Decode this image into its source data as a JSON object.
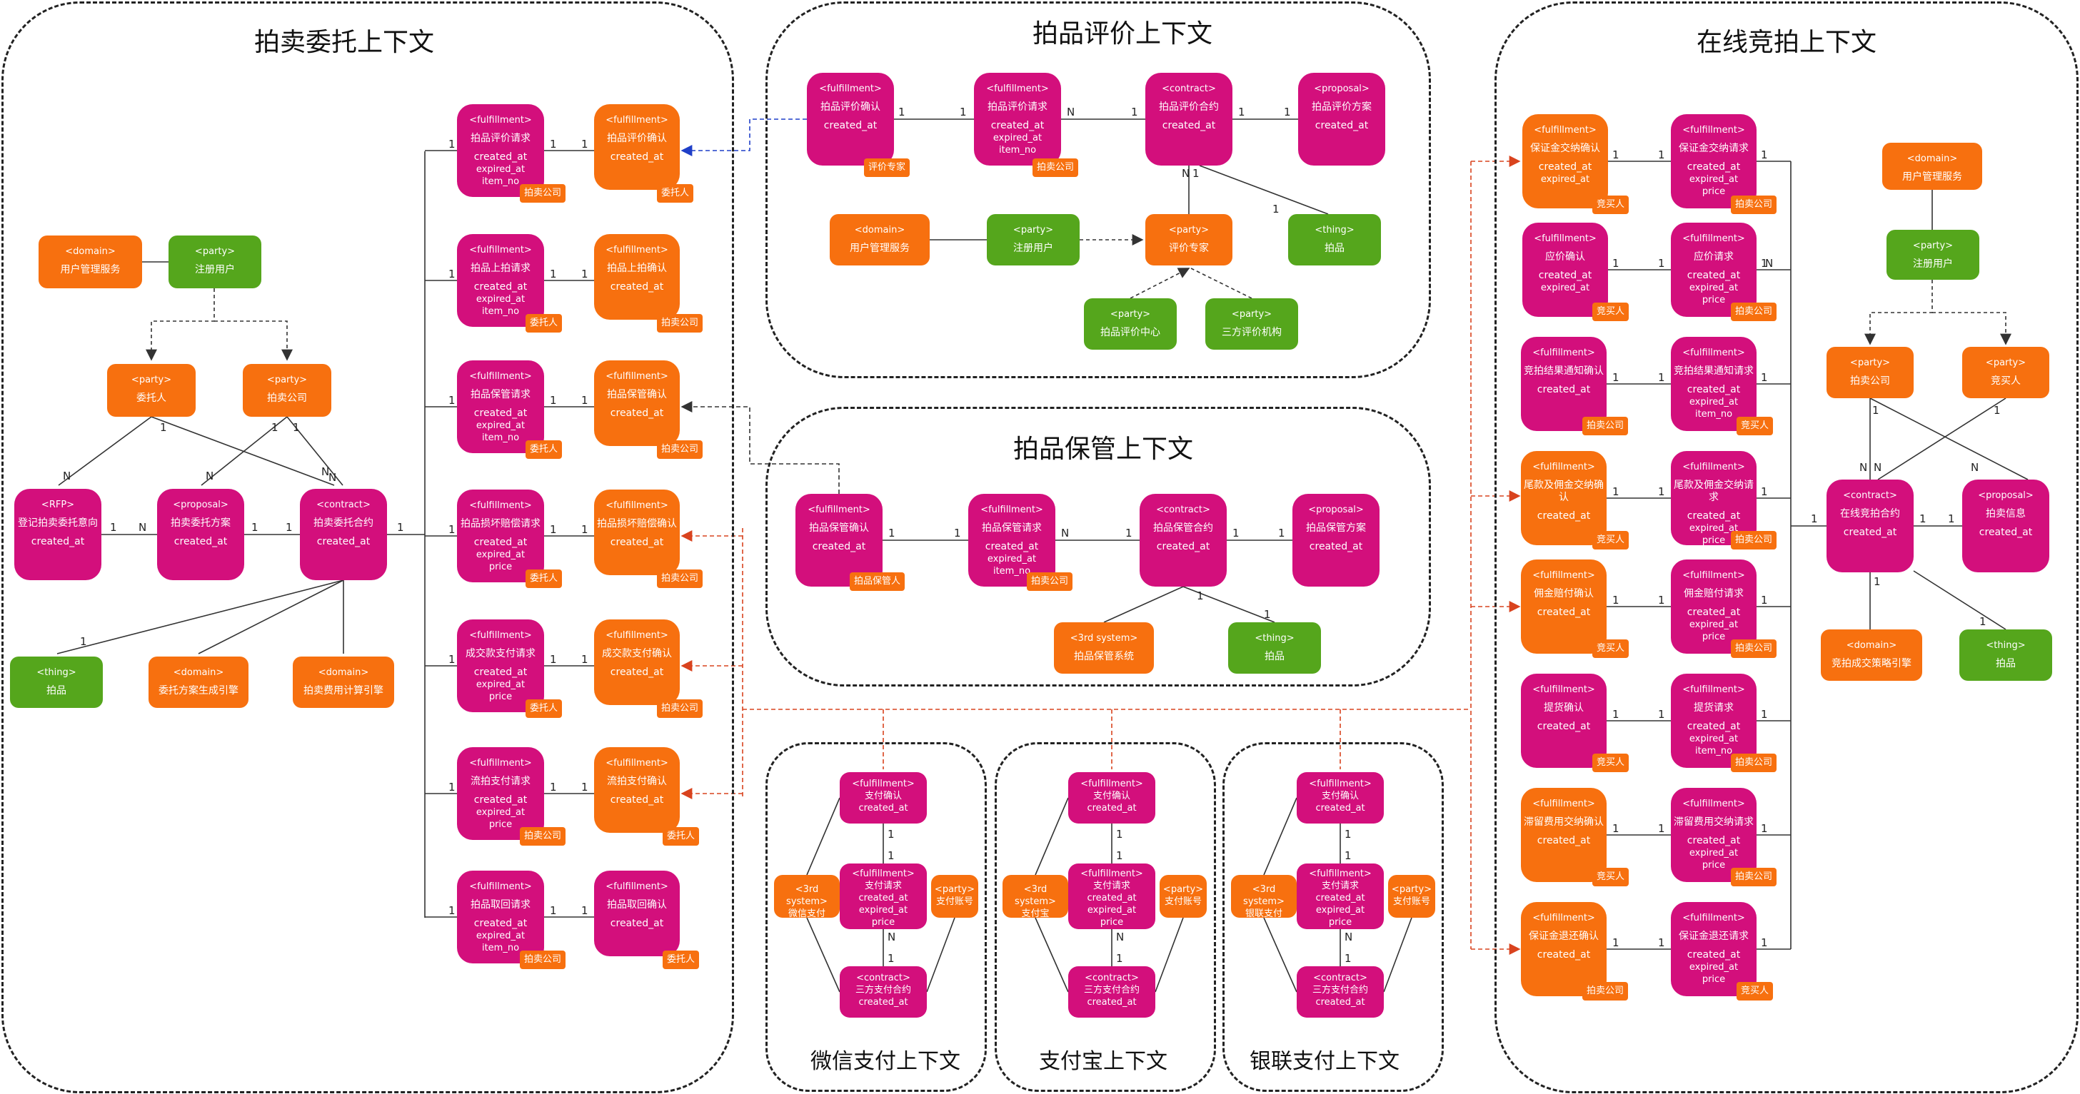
{
  "contexts": {
    "auction": "拍卖委托上下文",
    "evaluation": "拍品评价上下文",
    "storage": "拍品保管上下文",
    "online": "在线竞拍上下文",
    "wechat": "微信支付上下文",
    "alipay": "支付宝上下文",
    "unionpay": "银联支付上下文"
  },
  "stereo": {
    "fulfillment": "<fulfillment>",
    "contract": "<contract>",
    "proposal": "<proposal>",
    "party": "<party>",
    "thing": "<thing>",
    "domain": "<domain>",
    "rfp": "<RFP>",
    "system": "<3rd system>"
  },
  "attrs": {
    "created": "created_at",
    "expired": "expired_at",
    "item_no": "item_no",
    "price": "price"
  },
  "names": {
    "user_svc": "用户管理服务",
    "reg_user": "注册用户",
    "consignor": "委托人",
    "auction_co": "拍卖公司",
    "reg_intent": "登记拍卖委托意向",
    "consign_plan": "拍卖委托方案",
    "consign_contract": "拍卖委托合约",
    "item": "拍品",
    "plan_engine": "委托方案生成引擎",
    "fee_engine": "拍卖费用计算引擎",
    "eval_req": "拍品评价请求",
    "eval_ack": "拍品评价确认",
    "shelf_req": "拍品上拍请求",
    "shelf_ack": "拍品上拍确认",
    "store_req": "拍品保管请求",
    "store_ack": "拍品保管确认",
    "damage_req": "拍品损坏赔偿请求",
    "damage_ack": "拍品损坏赔偿确认",
    "deal_pay_req": "成交款支付请求",
    "deal_pay_ack": "成交款支付确认",
    "unsold_pay_req": "流拍支付请求",
    "unsold_pay_ack": "流拍支付确认",
    "retrieve_req": "拍品取回请求",
    "retrieve_ack": "拍品取回确认",
    "eval_contract": "拍品评价合约",
    "eval_plan": "拍品评价方案",
    "eval_expert": "评价专家",
    "eval_center": "拍品评价中心",
    "third_eval": "三方评价机构",
    "storage_contract": "拍品保管合约",
    "storage_plan": "拍品保管方案",
    "keeper": "拍品保管人",
    "storage_sys": "拍品保管系统",
    "pay_ack": "支付确认",
    "pay_req": "支付请求",
    "pay_contract": "三方支付合约",
    "pay_account": "支付账号",
    "wechat_pay": "微信支付",
    "alipay": "支付宝",
    "unionpay": "银联支付",
    "bidder": "竞买人",
    "deposit_ack": "保证金交纳确认",
    "deposit_req": "保证金交纳请求",
    "bid_ack": "应价确认",
    "bid_req": "应价请求",
    "result_ack": "竞拍结果通知确认",
    "result_req": "竞拍结果通知请求",
    "final_ack": "尾款及佣金交纳确认",
    "final_req": "尾款及佣金交纳请求",
    "comm_ack": "佣金赔付确认",
    "comm_req": "佣金赔付请求",
    "pickup_ack": "提货确认",
    "pickup_req": "提货请求",
    "overdue_ack": "滞留费用交纳确认",
    "overdue_req": "滞留费用交纳请求",
    "refund_ack": "保证金退还确认",
    "refund_req": "保证金退还请求",
    "online_contract": "在线竞拍合约",
    "auction_info": "拍卖信息",
    "strategy_engine": "竞拍成交策略引擎"
  },
  "multiplicity": {
    "one": "1",
    "many": "N"
  },
  "colors": {
    "fulfillment": "#D30F7C",
    "orange": "#F7700F",
    "green": "#55A61C",
    "blue_link": "#1F3FC8",
    "red_link": "#D9431E"
  }
}
